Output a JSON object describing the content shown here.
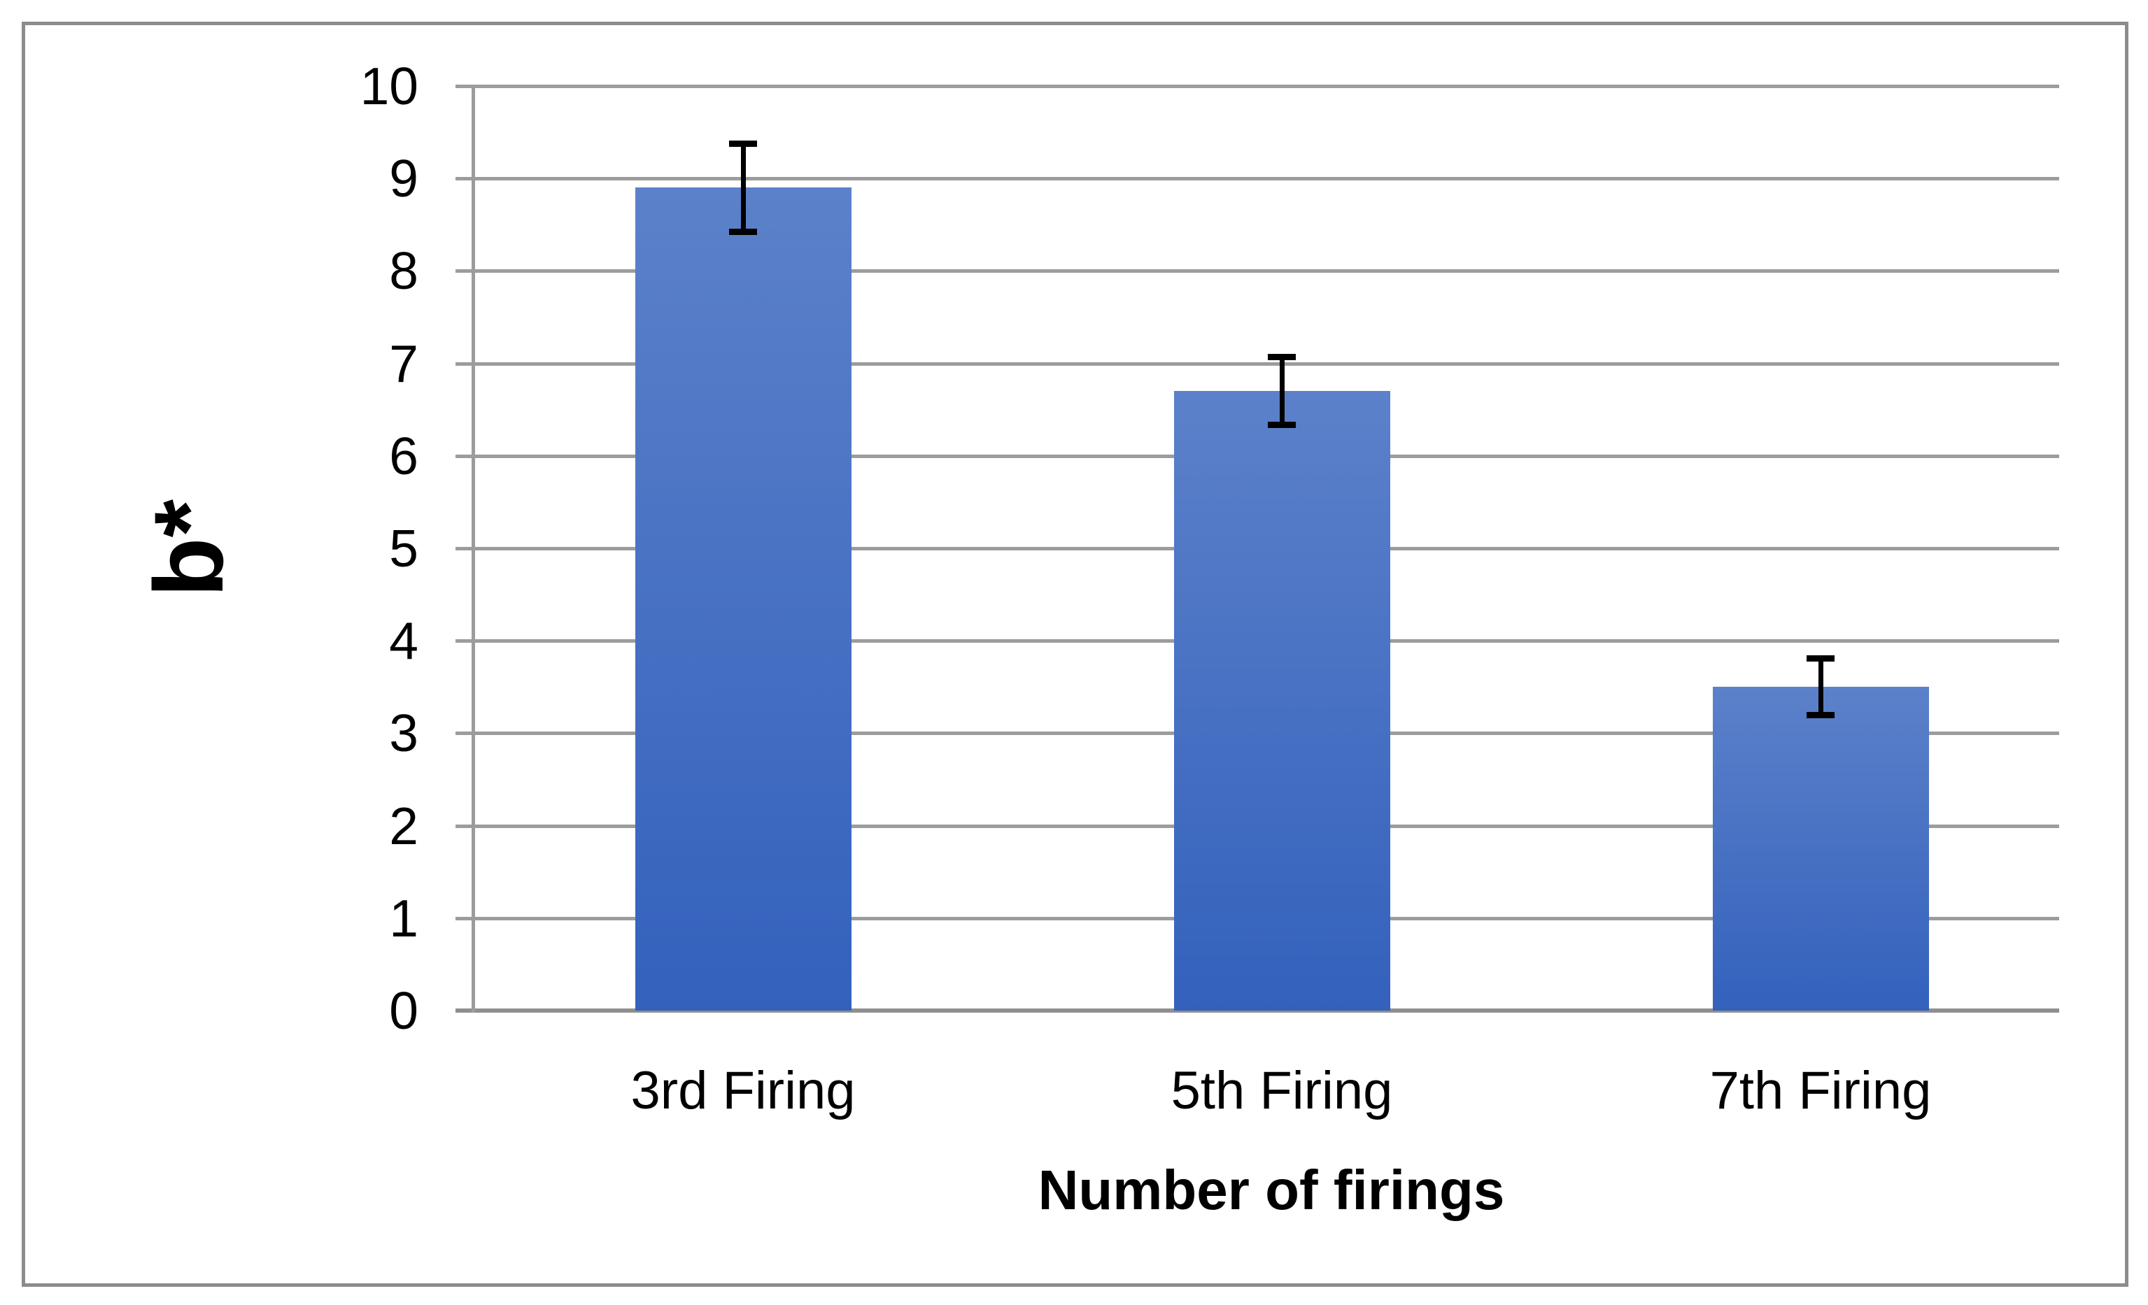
{
  "chart_data": {
    "type": "bar",
    "title": "",
    "categories": [
      "3rd Firing",
      "5th Firing",
      "7th Firing"
    ],
    "values": [
      8.9,
      6.7,
      3.5
    ],
    "errors": [
      0.48,
      0.37,
      0.31
    ],
    "xlabel": "Number of firings",
    "ylabel": "b*",
    "ylim": [
      0,
      10
    ],
    "yticks": [
      0,
      1,
      2,
      3,
      4,
      5,
      6,
      7,
      8,
      9,
      10
    ],
    "grid": "horizontal-on",
    "legend": "none",
    "colors": {
      "bar_gradient_top": "#5C81CA",
      "bar_gradient_bottom": "#3361BC",
      "error_bar": "#000000",
      "gridline": "#9C9C9C",
      "axis_line": "#8F8F8F",
      "frame_border": "#8C8C8C",
      "text": "#000000",
      "background": "#FFFFFF"
    }
  }
}
